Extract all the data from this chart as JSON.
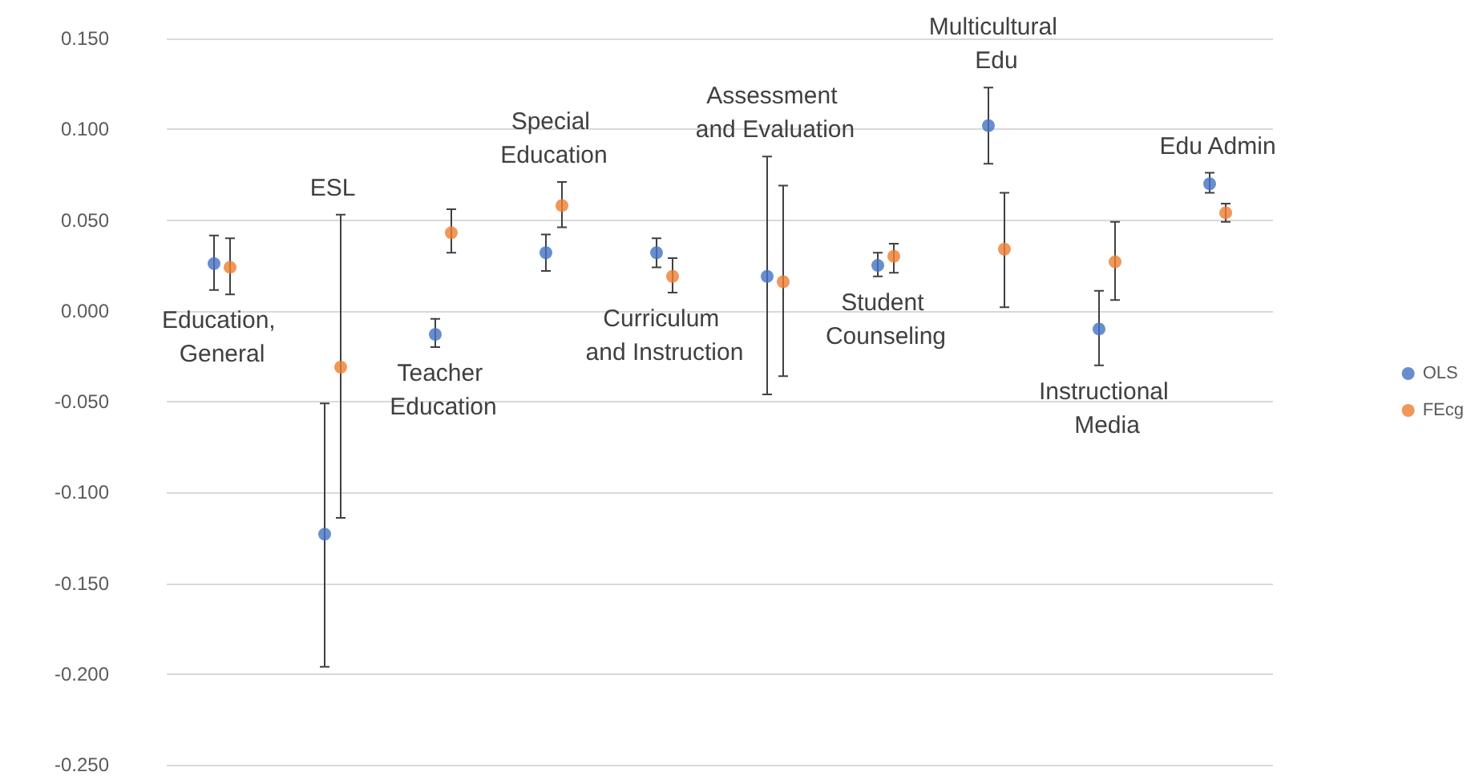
{
  "chart_data": {
    "type": "scatter",
    "categories": [
      "Education, General",
      "ESL",
      "Teacher Education",
      "Special Education",
      "Curriculum and Instruction",
      "Assessment and Evaluation",
      "Student Counseling",
      "Multicultural Edu",
      "Instructional Media",
      "Edu Admin"
    ],
    "series": [
      {
        "name": "OLS",
        "color": "#4472c4",
        "values": [
          0.026,
          -0.123,
          -0.013,
          0.032,
          0.032,
          0.019,
          0.025,
          0.102,
          -0.01,
          0.07
        ],
        "errors": [
          [
            0.0115,
            0.0415
          ],
          [
            -0.196,
            -0.051
          ],
          [
            -0.02,
            -0.0044
          ],
          [
            0.022,
            0.042
          ],
          [
            0.024,
            0.04
          ],
          [
            -0.046,
            0.085
          ],
          [
            0.019,
            0.032
          ],
          [
            0.081,
            0.123
          ],
          [
            -0.03,
            0.011
          ],
          [
            0.065,
            0.076
          ]
        ]
      },
      {
        "name": "FEcg",
        "color": "#ed7d31",
        "values": [
          0.024,
          -0.031,
          0.043,
          0.058,
          0.019,
          0.016,
          0.03,
          0.034,
          0.027,
          0.054
        ],
        "errors": [
          [
            0.009,
            0.04
          ],
          [
            -0.114,
            0.053
          ],
          [
            0.032,
            0.056
          ],
          [
            0.046,
            0.071
          ],
          [
            0.01,
            0.029
          ],
          [
            -0.036,
            0.069
          ],
          [
            0.021,
            0.037
          ],
          [
            0.002,
            0.065
          ],
          [
            0.006,
            0.049
          ],
          [
            0.049,
            0.059
          ]
        ]
      }
    ],
    "ylim": [
      -0.25,
      0.15
    ],
    "yticks": [
      {
        "value": -0.25,
        "label": "-0.250"
      },
      {
        "value": -0.2,
        "label": "-0.200"
      },
      {
        "value": -0.15,
        "label": "-0.150"
      },
      {
        "value": -0.1,
        "label": "-0.100"
      },
      {
        "value": -0.05,
        "label": "-0.050"
      },
      {
        "value": 0,
        "label": "0.000"
      },
      {
        "value": 0.05,
        "label": "0.050"
      },
      {
        "value": 0.1,
        "label": "0.100"
      },
      {
        "value": 0.15,
        "label": "0.150"
      }
    ],
    "grid": "y",
    "legend": "right",
    "marker": "circle",
    "tick_labels": "y"
  }
}
